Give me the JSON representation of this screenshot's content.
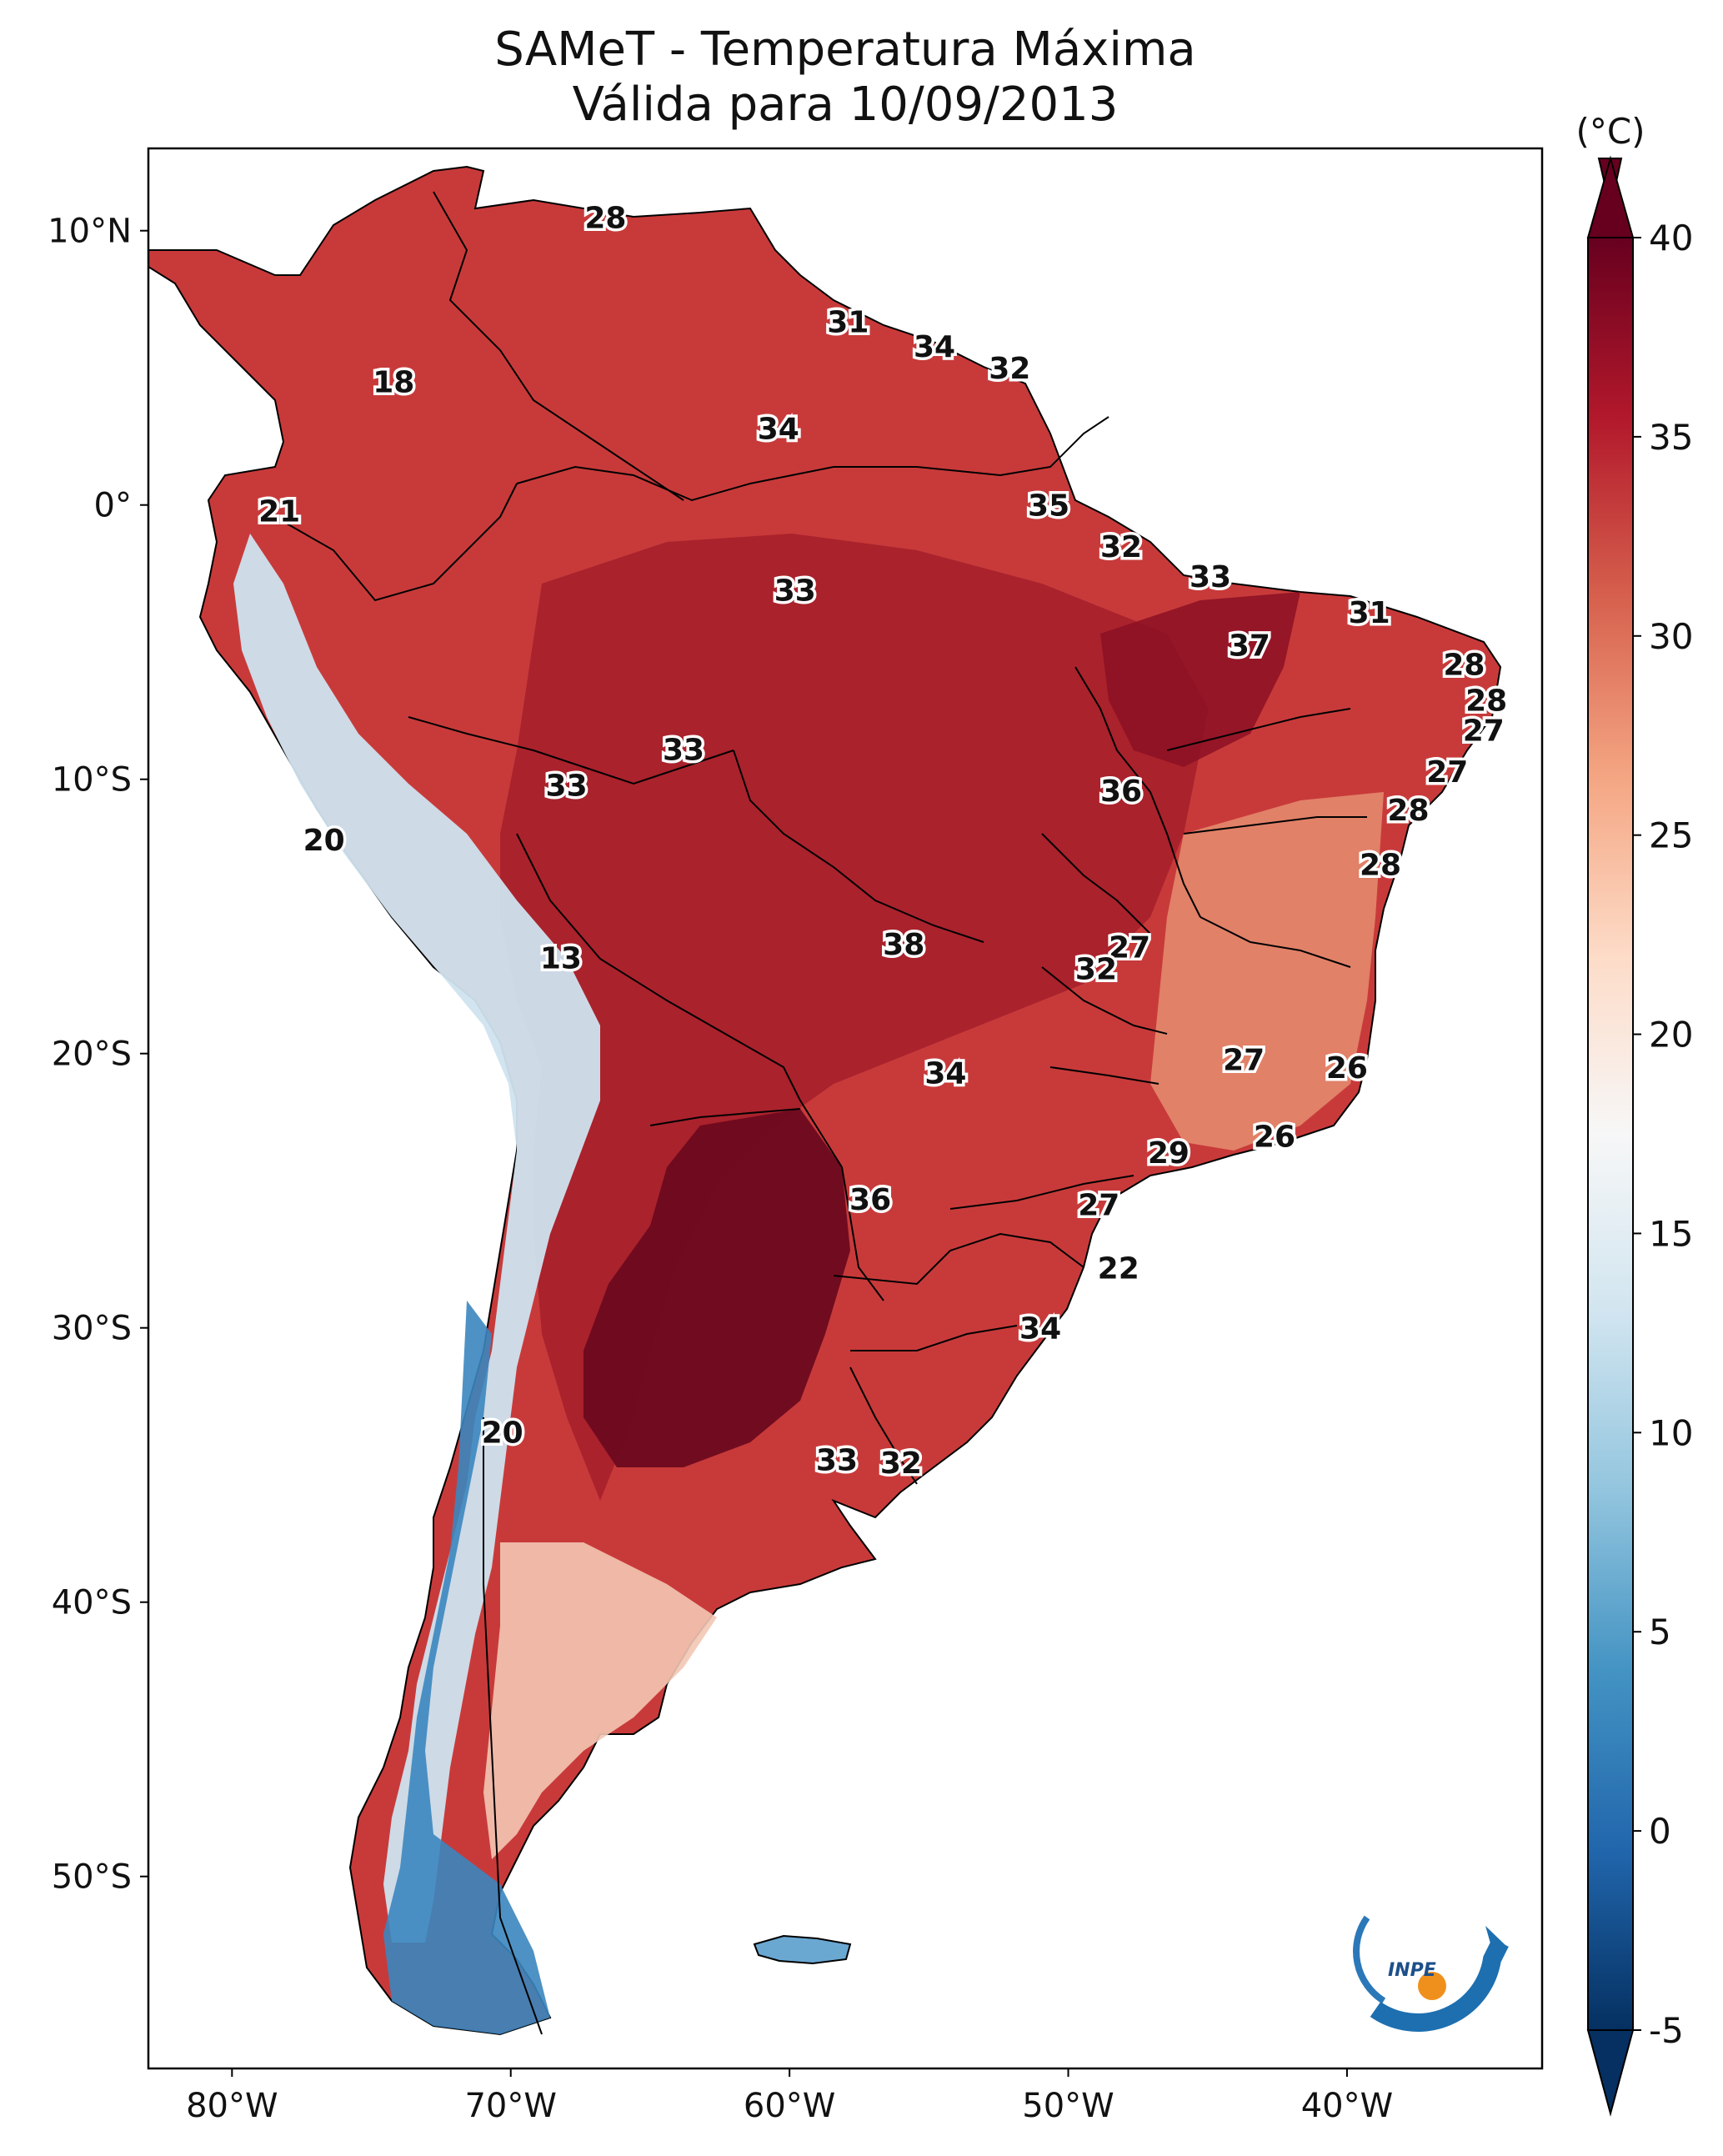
{
  "title": "SAMeT - Temperatura Máxima",
  "subtitle": "Válida para 10/09/2013",
  "colorbar": {
    "unit": "(°C)",
    "min": -5,
    "max": 40,
    "ticks": [
      "40",
      "35",
      "30",
      "25",
      "20",
      "15",
      "10",
      "5",
      "0",
      "-5"
    ],
    "colors": [
      "#67001f",
      "#b2182b",
      "#d6604d",
      "#f4a582",
      "#fddbc7",
      "#f7f7f7",
      "#d1e5f0",
      "#92c5de",
      "#4393c3",
      "#2166ac",
      "#053061"
    ]
  },
  "axes": {
    "lon_ticks": [
      "80°W",
      "70°W",
      "60°W",
      "50°W",
      "40°W"
    ],
    "lat_ticks": [
      "10°N",
      "0°",
      "10°S",
      "20°S",
      "30°S",
      "40°S",
      "50°S"
    ]
  },
  "map_labels": [
    {
      "text": "28",
      "lon": -66.6,
      "lat": 10.5
    },
    {
      "text": "18",
      "lon": -74.2,
      "lat": 4.5
    },
    {
      "text": "31",
      "lon": -57.9,
      "lat": 6.7
    },
    {
      "text": "34",
      "lon": -54.8,
      "lat": 5.8
    },
    {
      "text": "32",
      "lon": -52.1,
      "lat": 5.0
    },
    {
      "text": "34",
      "lon": -60.4,
      "lat": 2.8
    },
    {
      "text": "21",
      "lon": -78.3,
      "lat": -0.2
    },
    {
      "text": "35",
      "lon": -50.7,
      "lat": 0.0
    },
    {
      "text": "32",
      "lon": -48.1,
      "lat": -1.5
    },
    {
      "text": "33",
      "lon": -59.8,
      "lat": -3.1
    },
    {
      "text": "33",
      "lon": -44.9,
      "lat": -2.6
    },
    {
      "text": "31",
      "lon": -39.2,
      "lat": -3.9
    },
    {
      "text": "37",
      "lon": -43.5,
      "lat": -5.1
    },
    {
      "text": "28",
      "lon": -35.8,
      "lat": -5.8
    },
    {
      "text": "28",
      "lon": -35.0,
      "lat": -7.1
    },
    {
      "text": "27",
      "lon": -35.1,
      "lat": -8.2
    },
    {
      "text": "33",
      "lon": -63.8,
      "lat": -8.9
    },
    {
      "text": "27",
      "lon": -36.4,
      "lat": -9.7
    },
    {
      "text": "33",
      "lon": -68.0,
      "lat": -10.2
    },
    {
      "text": "36",
      "lon": -48.1,
      "lat": -10.4
    },
    {
      "text": "28",
      "lon": -37.8,
      "lat": -11.1
    },
    {
      "text": "20",
      "lon": -76.7,
      "lat": -12.2
    },
    {
      "text": "28",
      "lon": -38.8,
      "lat": -13.1
    },
    {
      "text": "38",
      "lon": -55.9,
      "lat": -16.0
    },
    {
      "text": "27",
      "lon": -47.8,
      "lat": -16.1
    },
    {
      "text": "13",
      "lon": -68.2,
      "lat": -16.5
    },
    {
      "text": "32",
      "lon": -49.0,
      "lat": -16.9
    },
    {
      "text": "27",
      "lon": -43.7,
      "lat": -20.2
    },
    {
      "text": "26",
      "lon": -40.0,
      "lat": -20.5
    },
    {
      "text": "34",
      "lon": -54.4,
      "lat": -20.7
    },
    {
      "text": "26",
      "lon": -42.6,
      "lat": -23.0
    },
    {
      "text": "29",
      "lon": -46.4,
      "lat": -23.6
    },
    {
      "text": "36",
      "lon": -57.1,
      "lat": -25.3
    },
    {
      "text": "27",
      "lon": -48.9,
      "lat": -25.5
    },
    {
      "text": "22",
      "lon": -48.2,
      "lat": -27.8
    },
    {
      "text": "34",
      "lon": -51.0,
      "lat": -30.0
    },
    {
      "text": "20",
      "lon": -70.3,
      "lat": -33.8
    },
    {
      "text": "33",
      "lon": -58.3,
      "lat": -34.8
    },
    {
      "text": "32",
      "lon": -56.0,
      "lat": -34.9
    }
  ],
  "logo": {
    "text": "INPE"
  }
}
